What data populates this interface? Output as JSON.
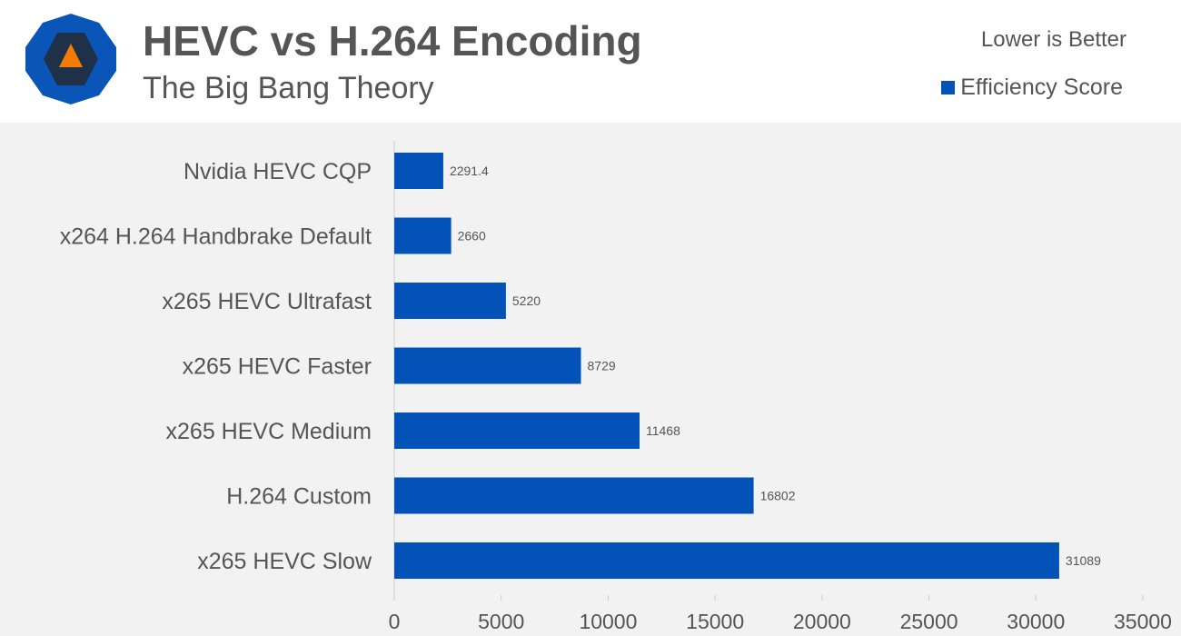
{
  "header": {
    "title": "HEVC vs H.264 Encoding",
    "subtitle": "The Big Bang Theory",
    "note": "Lower is Better",
    "legend_label": "Efficiency Score",
    "logo_icon": "site-logo-octagon-icon"
  },
  "colors": {
    "bar": "#0352b8",
    "logo_outer": "#0a55b8",
    "logo_inner": "#1f3149",
    "logo_triangle": "#f57c00",
    "text": "#555555",
    "axis": "#cccccc"
  },
  "chart_data": {
    "type": "bar",
    "orientation": "horizontal",
    "title": "HEVC vs H.264 Encoding",
    "subtitle": "The Big Bang Theory",
    "categories": [
      "Nvidia HEVC CQP",
      "x264 H.264 Handbrake Default",
      "x265 HEVC Ultrafast",
      "x265 HEVC Faster",
      "x265 HEVC Medium",
      "H.264 Custom",
      "x265 HEVC Slow"
    ],
    "series": [
      {
        "name": "Efficiency Score",
        "values": [
          2291.4,
          2660,
          5220,
          8729,
          11468,
          16802,
          31089
        ],
        "labels": [
          "2291.4",
          "2660",
          "5220",
          "8729",
          "11468",
          "16802",
          "31089"
        ]
      }
    ],
    "xlim": [
      0,
      35000
    ],
    "xticks": [
      0,
      5000,
      10000,
      15000,
      20000,
      25000,
      30000,
      35000
    ],
    "grid": false,
    "legend_position": "top-right",
    "annotation": "Lower is Better"
  }
}
